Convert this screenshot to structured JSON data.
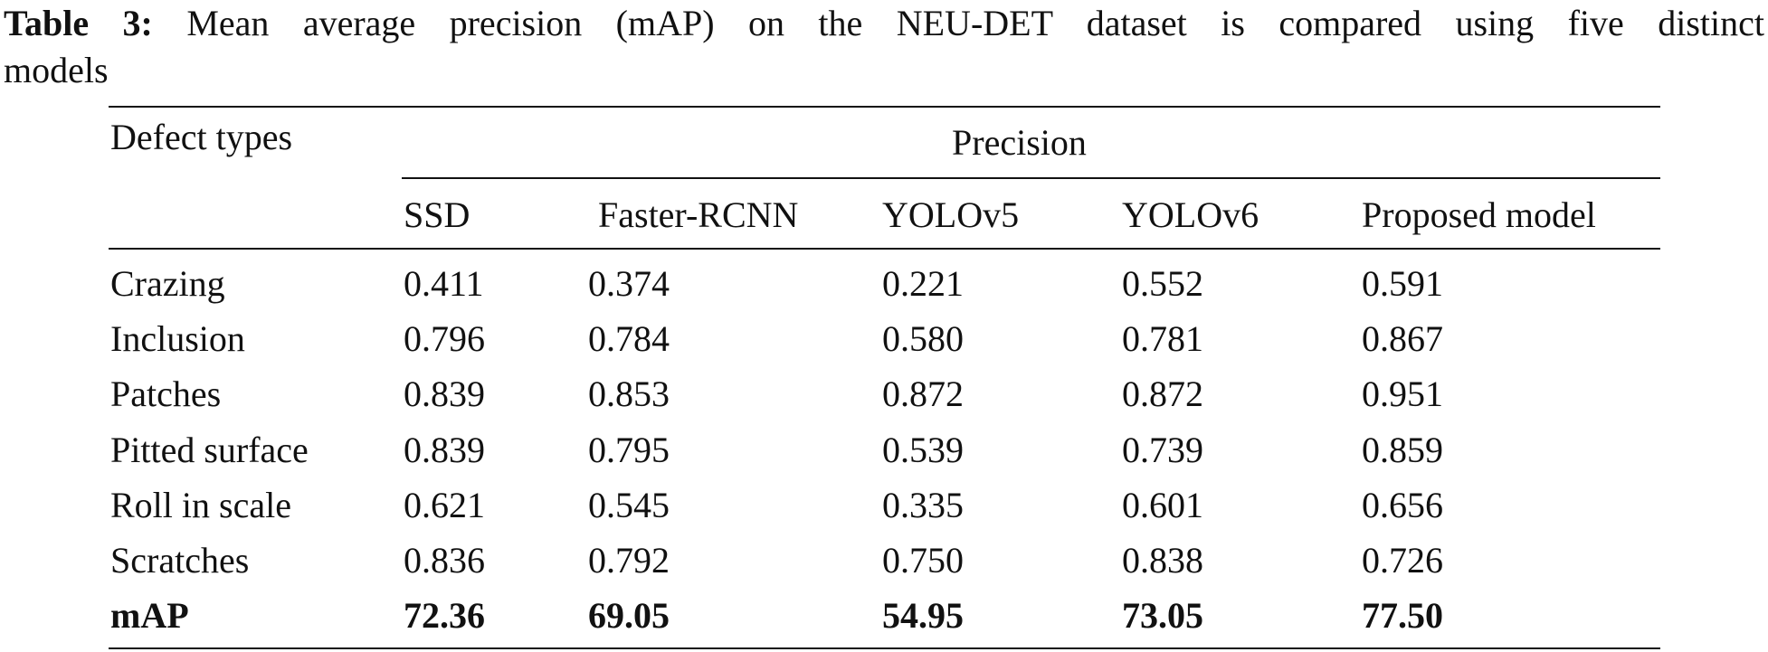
{
  "caption": {
    "label": "Table 3:",
    "text_line1": "Mean average precision (mAP) on the NEU-DET dataset is compared using five distinct",
    "text_line2": "models"
  },
  "table": {
    "row_header_title": "Defect types",
    "group_header": "Precision",
    "columns": [
      "SSD",
      "Faster-RCNN",
      "YOLOv5",
      "YOLOv6",
      "Proposed model"
    ],
    "rows": [
      {
        "label": "Crazing",
        "values": [
          "0.411",
          "0.374",
          "0.221",
          "0.552",
          "0.591"
        ]
      },
      {
        "label": "Inclusion",
        "values": [
          "0.796",
          "0.784",
          "0.580",
          "0.781",
          "0.867"
        ]
      },
      {
        "label": "Patches",
        "values": [
          "0.839",
          "0.853",
          "0.872",
          "0.872",
          "0.951"
        ]
      },
      {
        "label": "Pitted surface",
        "values": [
          "0.839",
          "0.795",
          "0.539",
          "0.739",
          "0.859"
        ]
      },
      {
        "label": "Roll in scale",
        "values": [
          "0.621",
          "0.545",
          "0.335",
          "0.601",
          "0.656"
        ]
      },
      {
        "label": "Scratches",
        "values": [
          "0.836",
          "0.792",
          "0.750",
          "0.838",
          "0.726"
        ]
      }
    ],
    "summary_row": {
      "label": "mAP",
      "values": [
        "72.36",
        "69.05",
        "54.95",
        "73.05",
        "77.50"
      ]
    }
  }
}
